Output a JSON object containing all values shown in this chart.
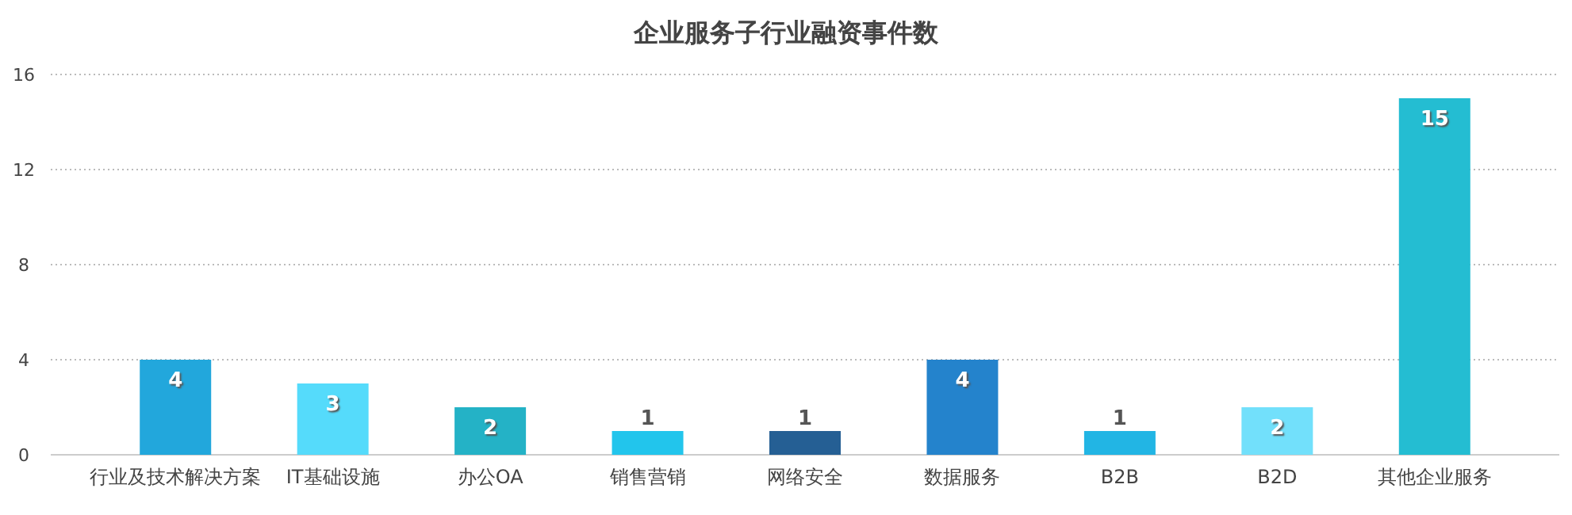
{
  "chart_data": {
    "type": "bar",
    "title": "企业服务子行业融资事件数",
    "categories": [
      "行业及技术解决方案",
      "IT基础设施",
      "办公OA",
      "销售营销",
      "网络安全",
      "数据服务",
      "B2B",
      "B2D",
      "其他企业服务"
    ],
    "values": [
      4,
      3,
      2,
      1,
      1,
      4,
      1,
      2,
      15
    ],
    "colors": [
      "#22a7dc",
      "#55dbfb",
      "#24b2c6",
      "#22c5ec",
      "#255f94",
      "#2483cc",
      "#22b5e4",
      "#72e0fb",
      "#24bdd2"
    ],
    "ylim": [
      0,
      16
    ],
    "yticks": [
      0,
      4,
      8,
      12,
      16
    ],
    "grid": "y",
    "data_labels": true
  }
}
